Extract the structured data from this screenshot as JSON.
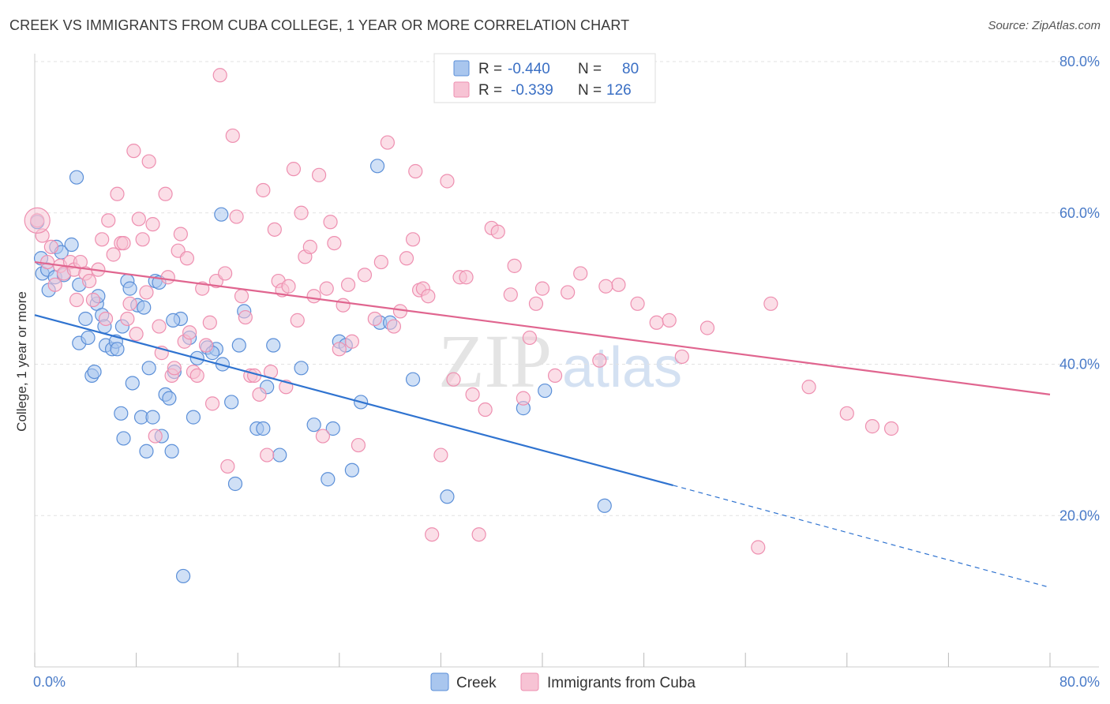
{
  "title": "CREEK VS IMMIGRANTS FROM CUBA COLLEGE, 1 YEAR OR MORE CORRELATION CHART",
  "source": "Source: ZipAtlas.com",
  "watermark": {
    "zip": "ZIP",
    "atlas": "atlas"
  },
  "chart_data": {
    "type": "scatter",
    "ylabel": "College, 1 year or more",
    "xlim": [
      0,
      80
    ],
    "ylim": [
      0,
      80
    ],
    "x_tick_labels": [
      {
        "value": 0,
        "label": "0.0%"
      },
      {
        "value": 80,
        "label": "80.0%"
      }
    ],
    "y_tick_labels": [
      {
        "value": 20,
        "label": "20.0%"
      },
      {
        "value": 40,
        "label": "40.0%"
      },
      {
        "value": 60,
        "label": "60.0%"
      },
      {
        "value": 80,
        "label": "80.0%"
      }
    ],
    "grid": true,
    "legend_position": "top-center",
    "series": [
      {
        "name": "Creek",
        "color": "#5b8fd8",
        "fill": "#a9c6ee",
        "line_color": "#2f73d0",
        "R": "-0.440",
        "N": "80",
        "trend": {
          "x0": 0,
          "y0": 46.5,
          "x1": 50.3,
          "y1": 24.0,
          "dash_x1": 80,
          "dash_y1": 10.5
        },
        "points": [
          [
            0.2,
            58.8
          ],
          [
            0.5,
            54.0
          ],
          [
            0.6,
            52.0
          ],
          [
            1.0,
            52.5
          ],
          [
            1.1,
            49.8
          ],
          [
            1.6,
            51.5
          ],
          [
            1.7,
            55.5
          ],
          [
            2.1,
            54.8
          ],
          [
            2.3,
            51.8
          ],
          [
            2.9,
            55.8
          ],
          [
            3.3,
            64.7
          ],
          [
            3.5,
            42.8
          ],
          [
            4.0,
            46.0
          ],
          [
            4.2,
            43.5
          ],
          [
            4.5,
            38.5
          ],
          [
            4.7,
            39.0
          ],
          [
            4.9,
            48.0
          ],
          [
            5.0,
            49.0
          ],
          [
            5.3,
            46.5
          ],
          [
            5.5,
            45.0
          ],
          [
            5.6,
            42.5
          ],
          [
            6.1,
            42.0
          ],
          [
            6.4,
            43.0
          ],
          [
            6.5,
            42.0
          ],
          [
            6.8,
            33.5
          ],
          [
            7.0,
            30.2
          ],
          [
            7.3,
            51.0
          ],
          [
            7.5,
            50.0
          ],
          [
            7.7,
            37.5
          ],
          [
            8.1,
            47.8
          ],
          [
            8.4,
            33.0
          ],
          [
            8.6,
            47.5
          ],
          [
            8.8,
            28.5
          ],
          [
            9.0,
            39.5
          ],
          [
            9.3,
            33.0
          ],
          [
            9.5,
            51.0
          ],
          [
            9.8,
            50.8
          ],
          [
            10.0,
            30.5
          ],
          [
            10.3,
            36.0
          ],
          [
            10.6,
            35.5
          ],
          [
            10.8,
            28.5
          ],
          [
            11.0,
            39.0
          ],
          [
            11.5,
            46.0
          ],
          [
            11.7,
            12.0
          ],
          [
            12.2,
            43.5
          ],
          [
            12.5,
            33.0
          ],
          [
            12.8,
            40.8
          ],
          [
            13.6,
            42.2
          ],
          [
            14.3,
            42.0
          ],
          [
            14.7,
            59.8
          ],
          [
            14.8,
            40.0
          ],
          [
            15.5,
            35.0
          ],
          [
            15.8,
            24.2
          ],
          [
            16.1,
            42.5
          ],
          [
            16.5,
            47.0
          ],
          [
            17.5,
            31.5
          ],
          [
            18.0,
            31.5
          ],
          [
            18.3,
            37.0
          ],
          [
            18.8,
            42.5
          ],
          [
            19.3,
            28.0
          ],
          [
            21.0,
            39.5
          ],
          [
            22.0,
            32.0
          ],
          [
            23.1,
            24.8
          ],
          [
            23.5,
            31.5
          ],
          [
            24.0,
            43.0
          ],
          [
            24.5,
            42.5
          ],
          [
            25.0,
            26.0
          ],
          [
            25.7,
            35.0
          ],
          [
            27.0,
            66.2
          ],
          [
            27.2,
            45.5
          ],
          [
            28.0,
            45.5
          ],
          [
            29.8,
            38.0
          ],
          [
            32.5,
            22.5
          ],
          [
            38.5,
            34.2
          ],
          [
            40.2,
            36.5
          ],
          [
            44.9,
            21.3
          ],
          [
            3.5,
            50.5
          ],
          [
            6.9,
            45.0
          ],
          [
            10.9,
            45.8
          ],
          [
            14.0,
            41.5
          ]
        ]
      },
      {
        "name": "Immigrants from Cuba",
        "color": "#ee8fb0",
        "fill": "#f7c3d4",
        "line_color": "#e0658f",
        "R": "-0.339",
        "N": "126",
        "trend": {
          "x0": 0,
          "y0": 53.5,
          "x1": 80,
          "y1": 36.0
        },
        "points": [
          [
            0.2,
            59.0
          ],
          [
            0.6,
            57.0
          ],
          [
            1.0,
            53.5
          ],
          [
            1.3,
            55.5
          ],
          [
            1.6,
            50.5
          ],
          [
            2.0,
            53.0
          ],
          [
            2.3,
            52.0
          ],
          [
            2.8,
            53.5
          ],
          [
            3.1,
            52.5
          ],
          [
            3.3,
            48.5
          ],
          [
            3.6,
            53.5
          ],
          [
            4.0,
            52.0
          ],
          [
            4.3,
            51.0
          ],
          [
            4.6,
            48.5
          ],
          [
            5.0,
            52.5
          ],
          [
            5.3,
            56.5
          ],
          [
            5.6,
            46.0
          ],
          [
            5.8,
            59.0
          ],
          [
            6.2,
            54.5
          ],
          [
            6.5,
            62.5
          ],
          [
            6.8,
            56.0
          ],
          [
            7.0,
            56.0
          ],
          [
            7.3,
            46.0
          ],
          [
            7.5,
            48.0
          ],
          [
            7.8,
            68.2
          ],
          [
            8.0,
            44.0
          ],
          [
            8.2,
            59.2
          ],
          [
            8.5,
            56.5
          ],
          [
            8.8,
            49.5
          ],
          [
            9.0,
            66.8
          ],
          [
            9.3,
            58.5
          ],
          [
            9.5,
            30.5
          ],
          [
            9.8,
            45.0
          ],
          [
            10.0,
            41.5
          ],
          [
            10.3,
            62.5
          ],
          [
            10.5,
            51.5
          ],
          [
            10.8,
            38.5
          ],
          [
            11.0,
            39.5
          ],
          [
            11.3,
            55.0
          ],
          [
            11.5,
            57.2
          ],
          [
            11.8,
            43.0
          ],
          [
            12.0,
            54.0
          ],
          [
            12.2,
            44.2
          ],
          [
            12.5,
            39.0
          ],
          [
            12.8,
            38.5
          ],
          [
            13.2,
            50.0
          ],
          [
            13.5,
            42.5
          ],
          [
            13.8,
            45.5
          ],
          [
            14.0,
            34.8
          ],
          [
            14.3,
            51.0
          ],
          [
            14.6,
            78.2
          ],
          [
            15.0,
            52.0
          ],
          [
            15.2,
            26.5
          ],
          [
            15.6,
            70.2
          ],
          [
            15.9,
            59.5
          ],
          [
            16.3,
            49.0
          ],
          [
            16.6,
            46.2
          ],
          [
            17.0,
            38.5
          ],
          [
            17.3,
            38.5
          ],
          [
            17.7,
            36.0
          ],
          [
            18.0,
            63.0
          ],
          [
            18.3,
            28.0
          ],
          [
            18.6,
            39.0
          ],
          [
            18.9,
            57.8
          ],
          [
            19.2,
            51.0
          ],
          [
            19.5,
            49.8
          ],
          [
            19.8,
            37.0
          ],
          [
            20.0,
            50.3
          ],
          [
            20.4,
            65.8
          ],
          [
            20.7,
            45.8
          ],
          [
            21.0,
            60.0
          ],
          [
            21.3,
            54.2
          ],
          [
            21.7,
            55.5
          ],
          [
            22.0,
            49.0
          ],
          [
            22.4,
            65.0
          ],
          [
            22.7,
            30.5
          ],
          [
            23.0,
            50.0
          ],
          [
            23.3,
            58.8
          ],
          [
            23.6,
            56.0
          ],
          [
            24.0,
            42.0
          ],
          [
            24.3,
            47.8
          ],
          [
            24.7,
            50.5
          ],
          [
            25.0,
            43.0
          ],
          [
            25.5,
            29.3
          ],
          [
            26.0,
            51.8
          ],
          [
            26.8,
            46.0
          ],
          [
            27.3,
            53.5
          ],
          [
            27.8,
            69.3
          ],
          [
            28.3,
            45.0
          ],
          [
            28.8,
            47.0
          ],
          [
            29.3,
            54.0
          ],
          [
            29.8,
            56.5
          ],
          [
            30.0,
            65.5
          ],
          [
            30.3,
            49.8
          ],
          [
            30.6,
            50.0
          ],
          [
            31.0,
            49.0
          ],
          [
            31.3,
            17.5
          ],
          [
            32.0,
            28.0
          ],
          [
            32.5,
            64.2
          ],
          [
            33.0,
            38.0
          ],
          [
            33.5,
            51.5
          ],
          [
            34.0,
            51.5
          ],
          [
            34.5,
            36.0
          ],
          [
            35.0,
            17.5
          ],
          [
            35.5,
            34.0
          ],
          [
            36.0,
            58.0
          ],
          [
            36.5,
            57.5
          ],
          [
            37.5,
            49.2
          ],
          [
            37.8,
            53.0
          ],
          [
            38.5,
            35.5
          ],
          [
            39.0,
            43.5
          ],
          [
            39.5,
            48.0
          ],
          [
            40.0,
            50.0
          ],
          [
            41.0,
            38.5
          ],
          [
            42.0,
            49.5
          ],
          [
            43.0,
            52.0
          ],
          [
            44.5,
            40.5
          ],
          [
            46.0,
            50.5
          ],
          [
            47.5,
            48.0
          ],
          [
            49.0,
            45.5
          ],
          [
            51.0,
            41.0
          ],
          [
            53.0,
            44.8
          ],
          [
            57.0,
            15.8
          ],
          [
            58.0,
            48.0
          ],
          [
            61.0,
            37.0
          ],
          [
            64.0,
            33.5
          ],
          [
            66.0,
            31.8
          ],
          [
            67.5,
            31.5
          ],
          [
            45.0,
            50.3
          ],
          [
            50.0,
            45.8
          ]
        ]
      }
    ]
  }
}
